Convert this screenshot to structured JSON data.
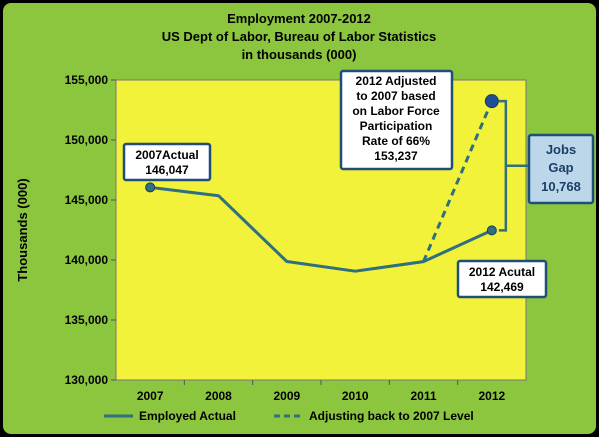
{
  "chart_data": {
    "type": "line",
    "title_lines": [
      "Employment 2007-2012",
      "US Dept of Labor, Bureau of Labor Statistics",
      "in thousands (000)"
    ],
    "ylabel": "Thousands (000)",
    "xlabel": "",
    "categories": [
      "2007",
      "2008",
      "2009",
      "2010",
      "2011",
      "2012"
    ],
    "ylim": [
      130000,
      155000
    ],
    "yticks": [
      130000,
      135000,
      140000,
      145000,
      150000,
      155000
    ],
    "ytick_labels": [
      "130,000",
      "135,000",
      "140,000",
      "145,000",
      "150,000",
      "155,000"
    ],
    "series": [
      {
        "name": "Employed Actual",
        "style": "solid",
        "color": "#2f6f80",
        "x": [
          "2007",
          "2008",
          "2009",
          "2010",
          "2011",
          "2012"
        ],
        "values": [
          146047,
          145362,
          139877,
          139064,
          139869,
          142469
        ]
      },
      {
        "name": "Adjusting back to 2007 Level",
        "style": "dashed",
        "color": "#2f6f80",
        "x": [
          "2011",
          "2012"
        ],
        "values": [
          139869,
          153237
        ]
      }
    ],
    "annotations": [
      {
        "lines": [
          "2007Actual",
          "146,047"
        ]
      },
      {
        "lines": [
          "2012 Adjusted",
          "to 2007 based",
          "on Labor Force",
          "Participation",
          "Rate of 66%",
          "153,237"
        ]
      },
      {
        "lines": [
          "2012 Acutal",
          "142,469"
        ]
      }
    ],
    "gap_label": [
      "Jobs",
      "Gap",
      "10,768"
    ],
    "legend_position": "bottom",
    "grid": false,
    "colors": {
      "background": "#8cc63f",
      "plot_area": "#f2f23a",
      "line": "#2f6f80",
      "marker": "#1f4e96",
      "callout_border": "#1f4e79",
      "gap_box": "#bcd7ea"
    }
  }
}
